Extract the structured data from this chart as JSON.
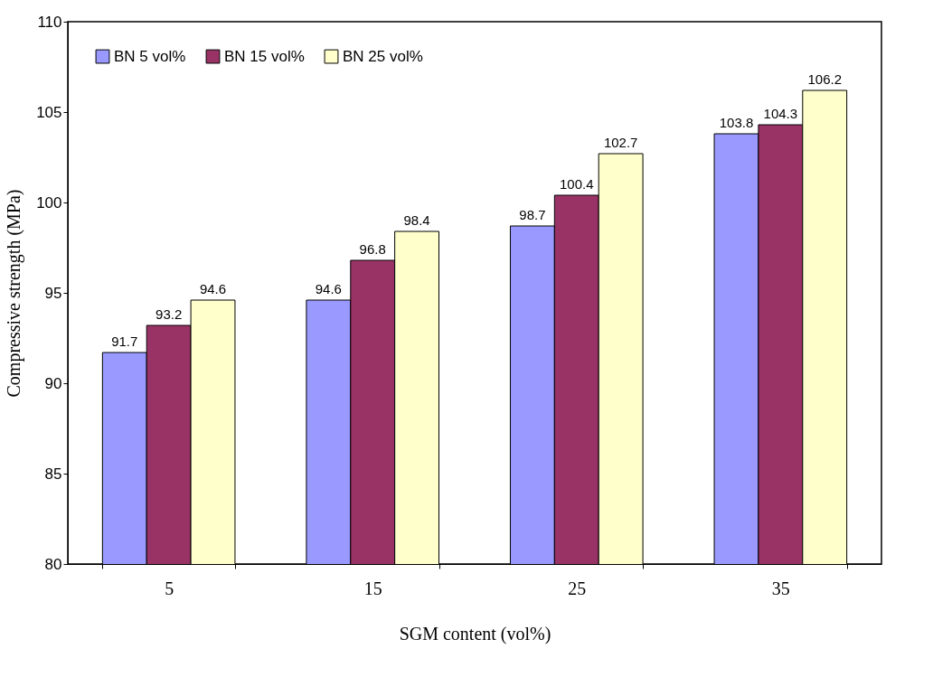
{
  "chart_data": {
    "type": "bar",
    "xlabel": "SGM content (vol%)",
    "ylabel": "Compressive strength (MPa)",
    "categories": [
      "5",
      "15",
      "25",
      "35"
    ],
    "series": [
      {
        "name": "BN 5 vol%",
        "color": "#9999ff",
        "values": [
          91.7,
          94.6,
          98.7,
          103.8
        ]
      },
      {
        "name": "BN 15 vol%",
        "color": "#993366",
        "values": [
          93.2,
          96.8,
          100.4,
          104.3
        ]
      },
      {
        "name": "BN 25 vol%",
        "color": "#ffffcc",
        "values": [
          94.6,
          98.4,
          102.7,
          106.2
        ]
      }
    ],
    "ylim": [
      80,
      110
    ],
    "yticks": [
      80,
      85,
      90,
      95,
      100,
      105,
      110
    ],
    "grid": false,
    "legend": "top left",
    "data_labels": true
  }
}
